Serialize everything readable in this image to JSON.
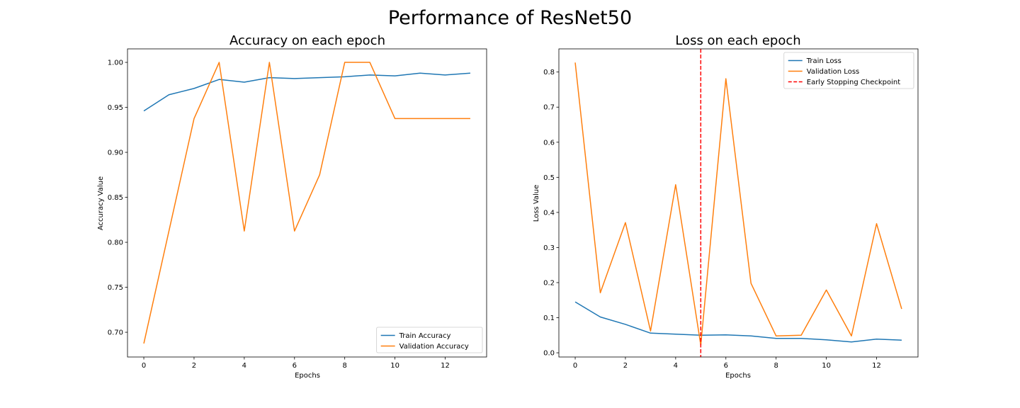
{
  "figure": {
    "title": "Performance of ResNet50"
  },
  "chart_data": [
    {
      "type": "line",
      "title": "Accuracy on each epoch",
      "xlabel": "Epochs",
      "ylabel": "Accuracy Value",
      "xlim": [
        -0.65,
        13.65
      ],
      "ylim": [
        0.6725,
        1.015
      ],
      "xticks": [
        0,
        2,
        4,
        6,
        8,
        10,
        12
      ],
      "xtick_labels": [
        "0",
        "2",
        "4",
        "6",
        "8",
        "10",
        "12"
      ],
      "yticks": [
        0.7,
        0.75,
        0.8,
        0.85,
        0.9,
        0.95,
        1.0
      ],
      "ytick_labels": [
        "0.70",
        "0.75",
        "0.80",
        "0.85",
        "0.90",
        "0.95",
        "1.00"
      ],
      "grid": false,
      "legend_position": "lower-right",
      "x": [
        0,
        1,
        2,
        3,
        4,
        5,
        6,
        7,
        8,
        9,
        10,
        11,
        12,
        13
      ],
      "series": [
        {
          "name": "Train Accuracy",
          "color": "#1f77b4",
          "values": [
            0.946,
            0.964,
            0.971,
            0.981,
            0.978,
            0.983,
            0.982,
            0.983,
            0.984,
            0.986,
            0.985,
            0.988,
            0.986,
            0.988
          ]
        },
        {
          "name": "Validation Accuracy",
          "color": "#ff7f0e",
          "values": [
            0.6875,
            0.8125,
            0.9375,
            1.0,
            0.8125,
            1.0,
            0.8125,
            0.875,
            1.0,
            1.0,
            0.9375,
            0.9375,
            0.9375,
            0.9375
          ]
        }
      ]
    },
    {
      "type": "line",
      "title": "Loss on each epoch",
      "xlabel": "Epochs",
      "ylabel": "Loss Value",
      "xlim": [
        -0.65,
        13.65
      ],
      "ylim": [
        -0.012,
        0.866
      ],
      "xticks": [
        0,
        2,
        4,
        6,
        8,
        10,
        12
      ],
      "xtick_labels": [
        "0",
        "2",
        "4",
        "6",
        "8",
        "10",
        "12"
      ],
      "yticks": [
        0.0,
        0.1,
        0.2,
        0.3,
        0.4,
        0.5,
        0.6,
        0.7,
        0.8
      ],
      "ytick_labels": [
        "0.0",
        "0.1",
        "0.2",
        "0.3",
        "0.4",
        "0.5",
        "0.6",
        "0.7",
        "0.8"
      ],
      "grid": false,
      "legend_position": "upper-right",
      "x": [
        0,
        1,
        2,
        3,
        4,
        5,
        6,
        7,
        8,
        9,
        10,
        11,
        12,
        13
      ],
      "series": [
        {
          "name": "Train Loss",
          "color": "#1f77b4",
          "values": [
            0.145,
            0.102,
            0.081,
            0.056,
            0.053,
            0.05,
            0.051,
            0.048,
            0.041,
            0.041,
            0.037,
            0.031,
            0.039,
            0.036
          ]
        },
        {
          "name": "Validation Loss",
          "color": "#ff7f0e",
          "values": [
            0.827,
            0.171,
            0.371,
            0.062,
            0.479,
            0.022,
            0.781,
            0.198,
            0.048,
            0.05,
            0.179,
            0.048,
            0.368,
            0.125
          ]
        }
      ],
      "vline": {
        "x": 5,
        "name": "Early Stopping Checkpoint",
        "color": "#ff0000",
        "style": "dashed"
      }
    }
  ]
}
